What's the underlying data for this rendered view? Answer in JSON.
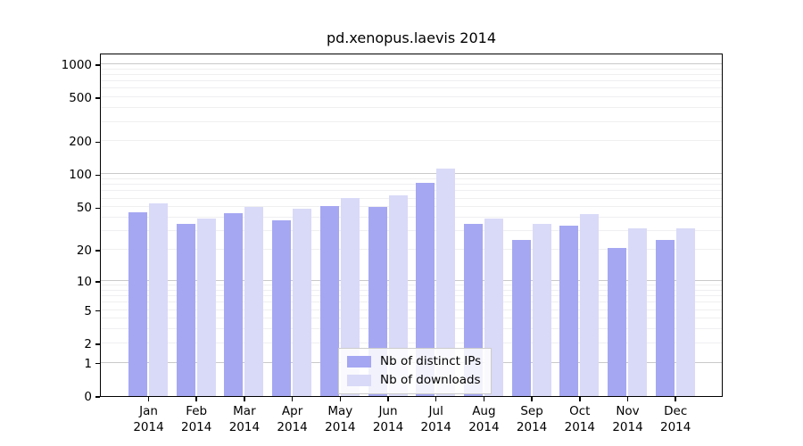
{
  "chart_data": {
    "type": "bar",
    "title": "pd.xenopus.laevis 2014",
    "yscale": "log10(1+y)",
    "ylim": [
      0,
      1270
    ],
    "yticks": [
      0,
      1,
      2,
      5,
      10,
      20,
      50,
      100,
      200,
      500,
      1000
    ],
    "grid": true,
    "legend_position": "inside-bottom-center",
    "categories": [
      "Jan",
      "Feb",
      "Mar",
      "Apr",
      "May",
      "Jun",
      "Jul",
      "Aug",
      "Sep",
      "Oct",
      "Nov",
      "Dec"
    ],
    "year": "2014",
    "series": [
      {
        "name": "Nb of distinct IPs",
        "color": "#a5a7f2",
        "values": [
          45,
          35,
          44,
          38,
          51,
          50,
          84,
          35,
          25,
          34,
          21,
          25
        ]
      },
      {
        "name": "Nb of downloads",
        "color": "#d9daf8",
        "values": [
          54,
          39,
          50,
          48,
          61,
          64,
          114,
          39,
          35,
          43,
          32,
          32
        ]
      }
    ]
  },
  "colors": {
    "background": "#ffffff",
    "axis": "#000000",
    "grid_major": "#c9c9c9",
    "grid_minor": "#efeff1",
    "legend_border": "#cccccc"
  }
}
